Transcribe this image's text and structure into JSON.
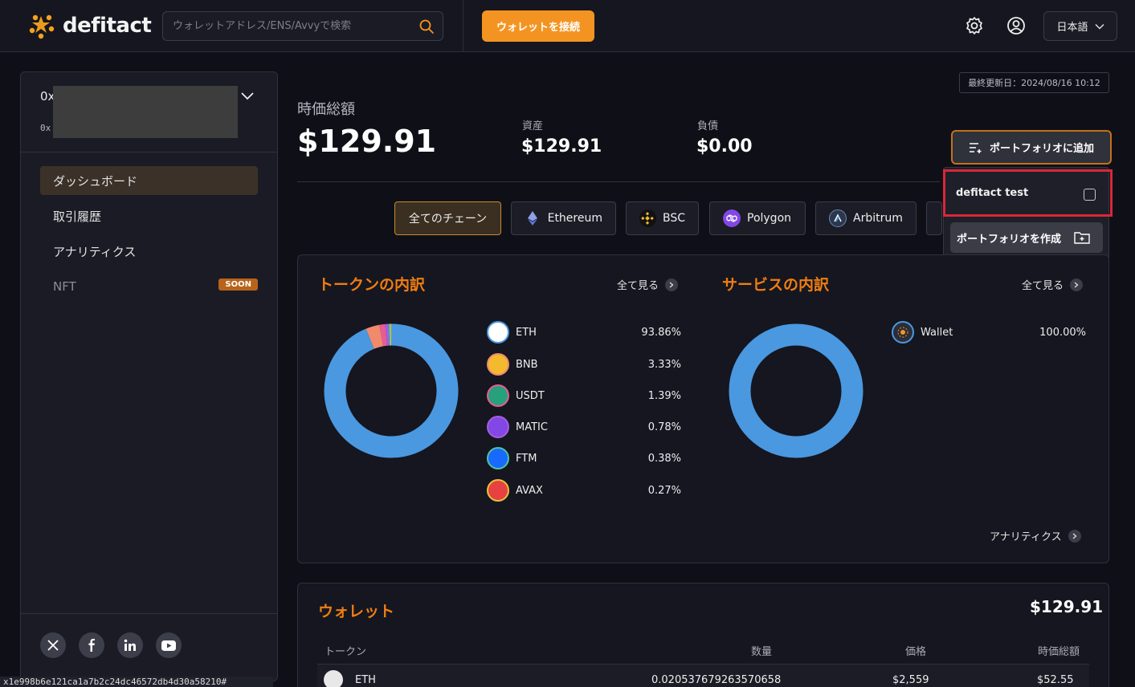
{
  "header": {
    "logo_text": "defitact",
    "search_placeholder": "ウォレットアドレス/ENS/Avvyで検索",
    "connect_label": "ウォレットを接続",
    "language": "日本語"
  },
  "sidebar": {
    "account_line1": "0x",
    "account_line2": "0x",
    "nav": [
      {
        "label": "ダッシュボード"
      },
      {
        "label": "取引履歴"
      },
      {
        "label": "アナリティクス"
      },
      {
        "label": "NFT",
        "badge": "SOON"
      }
    ]
  },
  "statusbar_text": "x1e998b6e121ca1a7b2c24dc46572db4d30a58210#",
  "summary": {
    "updated": "最終更新日：2024/08/16 10:12",
    "market_cap_label": "時価総額",
    "market_cap_value": "$129.91",
    "assets_label": "資産",
    "assets_value": "$129.91",
    "liabilities_label": "負債",
    "liabilities_value": "$0.00",
    "add_portfolio_label": "ポートフォリオに追加"
  },
  "chains": [
    {
      "label": "全てのチェーン"
    },
    {
      "label": "Ethereum",
      "color": "#627eea"
    },
    {
      "label": "BSC",
      "color": "#f3ba2f"
    },
    {
      "label": "Polygon",
      "color": "#8247e5"
    },
    {
      "label": "Arbitrum",
      "color": "#2d374b"
    }
  ],
  "dropdown": {
    "portfolio_name": "defitact test",
    "create_label": "ポートフォリオを作成"
  },
  "tokens_card": {
    "title": "トークンの内訳",
    "see_all": "全て見る",
    "footer_link": "アナリティクス",
    "items": [
      {
        "name": "ETH",
        "pct": "93.86%",
        "value": 93.86,
        "color": "#4a98e0"
      },
      {
        "name": "BNB",
        "pct": "3.33%",
        "value": 3.33,
        "color": "#f08a6c"
      },
      {
        "name": "USDT",
        "pct": "1.39%",
        "value": 1.39,
        "color": "#e75d93"
      },
      {
        "name": "MATIC",
        "pct": "0.78%",
        "value": 0.78,
        "color": "#a35fe0"
      },
      {
        "name": "FTM",
        "pct": "0.38%",
        "value": 0.38,
        "color": "#4fc49f"
      },
      {
        "name": "AVAX",
        "pct": "0.27%",
        "value": 0.27,
        "color": "#e6c33a"
      }
    ]
  },
  "services_card": {
    "title": "サービスの内訳",
    "see_all": "全て見る",
    "items": [
      {
        "name": "Wallet",
        "pct": "100.00%",
        "value": 100.0,
        "color": "#4a98e0"
      }
    ]
  },
  "wallet_card": {
    "title": "ウォレット",
    "total": "$129.91",
    "columns": [
      "トークン",
      "数量",
      "価格",
      "時価総額"
    ],
    "rows": [
      {
        "token": "ETH",
        "quantity": "0.020537679263570658",
        "price": "$2,559",
        "value": "$52.55"
      }
    ]
  }
}
